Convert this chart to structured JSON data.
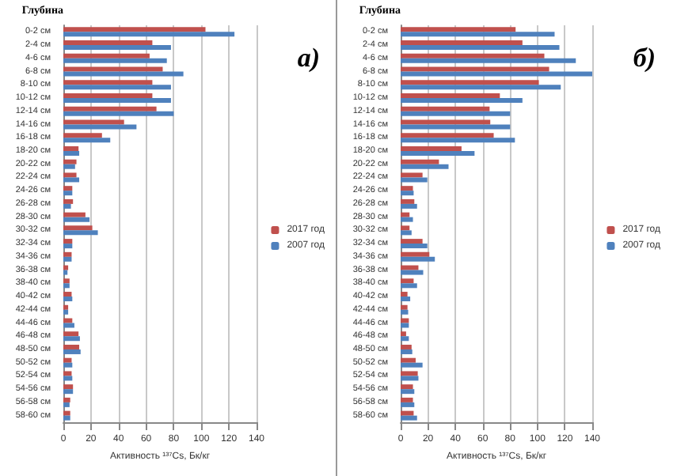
{
  "chart_data": [
    {
      "type": "bar",
      "orientation": "horizontal",
      "ylabel": "Глубина",
      "xlabel": "Активность ¹³⁷Cs, Бк/кг",
      "annotations": [
        "а)"
      ],
      "categories": [
        "0-2 см",
        "2-4 см",
        "4-6 см",
        "6-8 см",
        "8-10 см",
        "10-12 см",
        "12-14 см",
        "14-16 см",
        "16-18 см",
        "18-20 см",
        "20-22 см",
        "22-24 см",
        "24-26 см",
        "26-28 см",
        "28-30 см",
        "30-32 см",
        "32-34 см",
        "34-36 см",
        "36-38 см",
        "38-40 см",
        "40-42 см",
        "42-44 см",
        "44-46 см",
        "46-48 см",
        "48-50 см",
        "50-52 см",
        "52-54 см",
        "54-56 см",
        "56-58 см",
        "58-60 см"
      ],
      "series": [
        {
          "name": "2017 год",
          "color": "#c0504d",
          "values": [
            103,
            64.5,
            62.5,
            72,
            64.5,
            64.5,
            67.5,
            44,
            28,
            11,
            9.5,
            9.5,
            6.5,
            7,
            16,
            21,
            6.5,
            6,
            3.5,
            4.5,
            6,
            3.5,
            6.5,
            11,
            11.5,
            6,
            6,
            7,
            5,
            5
          ]
        },
        {
          "name": "2007 год",
          "color": "#4f81bd",
          "values": [
            124,
            78,
            75,
            87,
            78,
            78,
            80,
            53,
            34,
            11.5,
            8.5,
            11.5,
            6.5,
            5.5,
            19,
            25,
            6.5,
            6,
            3,
            4.5,
            6.5,
            3.5,
            8,
            12,
            12.5,
            6.5,
            6.5,
            7,
            4.5,
            5
          ]
        }
      ],
      "xlim": [
        0,
        140
      ],
      "xticks": [
        0,
        20,
        40,
        60,
        80,
        100,
        120,
        140
      ],
      "grid": "x",
      "legend": "right"
    },
    {
      "type": "bar",
      "orientation": "horizontal",
      "ylabel": "Глубина",
      "xlabel": "Активность ¹³⁷Cs, Бк/кг",
      "annotations": [
        "б)"
      ],
      "categories": [
        "0-2 см",
        "2-4 см",
        "4-6 см",
        "6-8 см",
        "8-10 см",
        "10-12 см",
        "12-14 см",
        "14-16 см",
        "16-18 см",
        "18-20 см",
        "20-22 см",
        "22-24 см",
        "24-26 см",
        "26-28 см",
        "28-30 см",
        "30-32 см",
        "32-34 см",
        "34-36 см",
        "36-38 см",
        "38-40 см",
        "40-42 см",
        "42-44 см",
        "44-46 см",
        "46-48 см",
        "48-50 см",
        "50-52 см",
        "52-54 см",
        "54-56 см",
        "56-58 см",
        "58-60 см"
      ],
      "series": [
        {
          "name": "2017 год",
          "color": "#c0504d",
          "values": [
            84,
            89,
            105,
            108.5,
            101,
            72.5,
            65,
            65.5,
            68,
            44.5,
            28,
            16,
            9,
            10,
            6.5,
            6.5,
            16,
            21,
            13,
            9.5,
            5,
            5,
            6,
            4,
            8,
            11,
            12.5,
            9,
            9,
            9.5
          ]
        },
        {
          "name": "2007 год",
          "color": "#4f81bd",
          "values": [
            112.5,
            116,
            128,
            140,
            117,
            89,
            80,
            80,
            83.5,
            54,
            35,
            19.5,
            9.5,
            12,
            9,
            8,
            19.5,
            25,
            16.5,
            12,
            7,
            5.5,
            6,
            6,
            8.5,
            16,
            13,
            10,
            10,
            12
          ]
        }
      ],
      "xlim": [
        0,
        140
      ],
      "xticks": [
        0,
        20,
        40,
        60,
        80,
        100,
        120,
        140
      ],
      "grid": "x",
      "legend": "right"
    }
  ]
}
